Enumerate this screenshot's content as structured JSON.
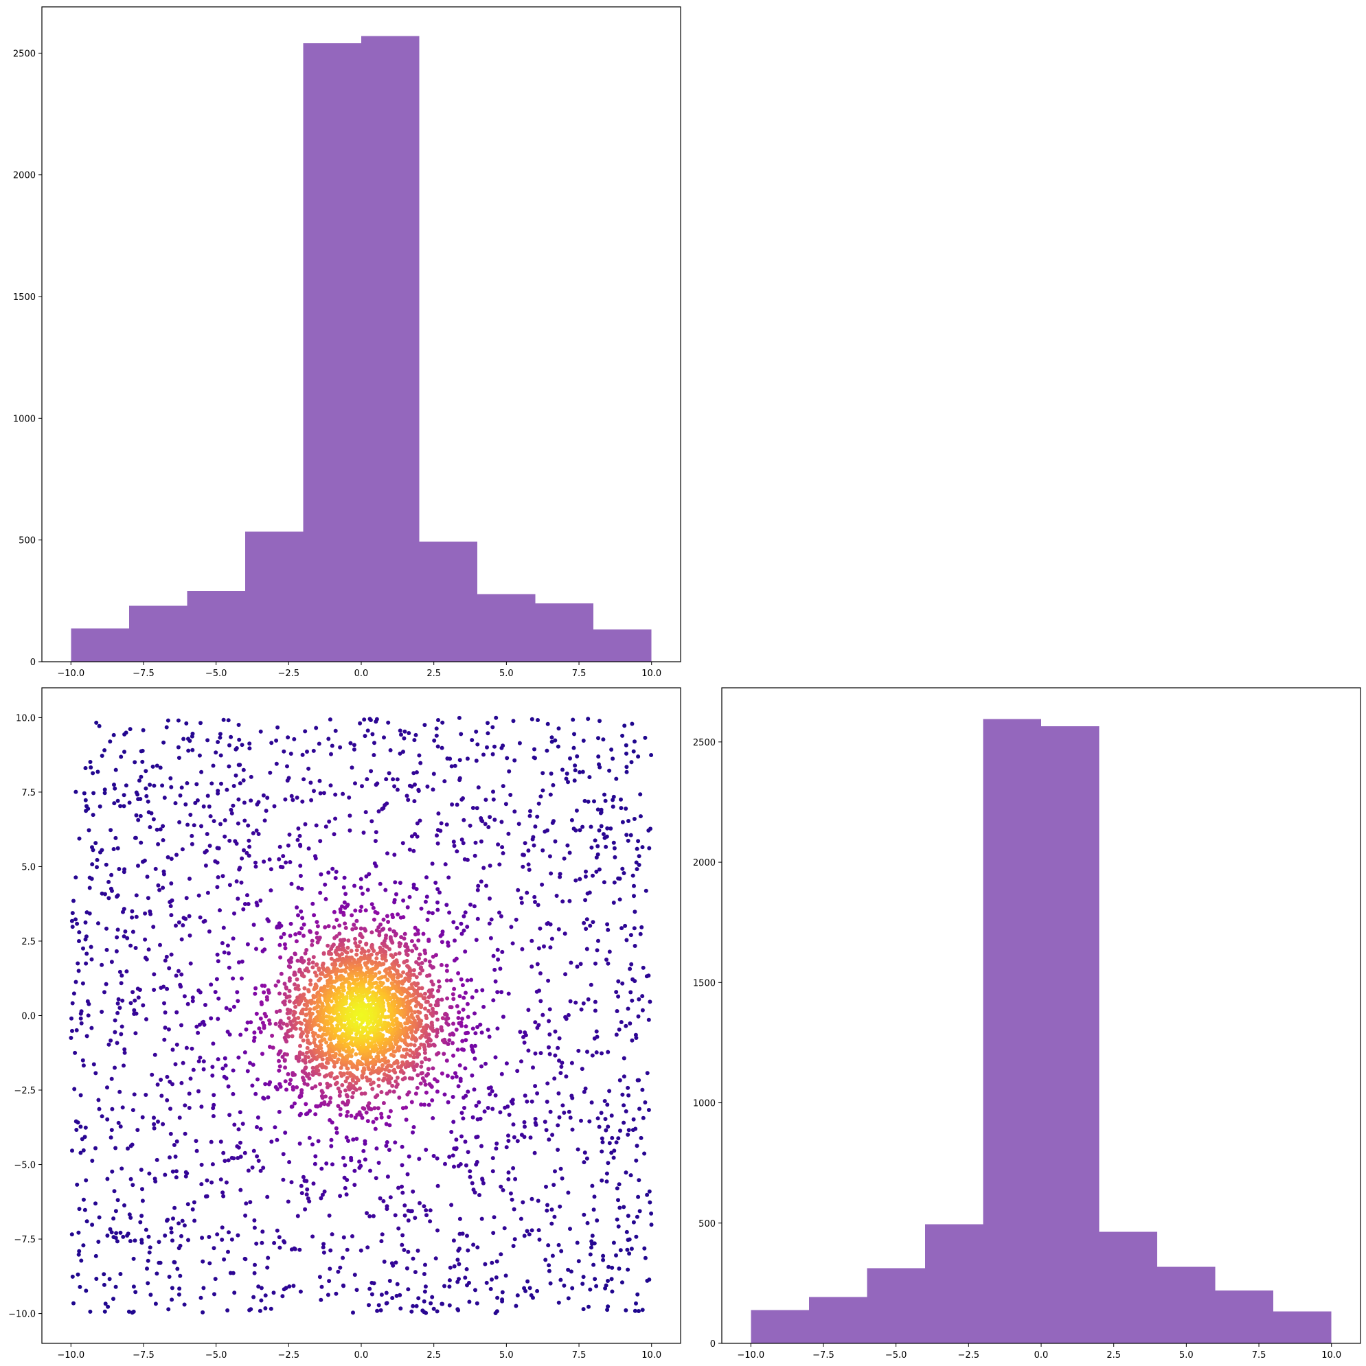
{
  "colors": {
    "hist_fill": "#9467bd",
    "scatter_colormap": [
      "#0d0887",
      "#5302a3",
      "#8b0aa5",
      "#b83289",
      "#db5c68",
      "#f48849",
      "#febd2a",
      "#f0f921"
    ]
  },
  "chart_data": [
    {
      "id": "top-histogram",
      "type": "bar",
      "title": "",
      "xlabel": "",
      "ylabel": "",
      "bin_edges": [
        -10,
        -8,
        -6,
        -4,
        -2,
        0,
        2,
        4,
        6,
        8,
        10
      ],
      "values": [
        137,
        230,
        290,
        535,
        2540,
        2570,
        493,
        278,
        240,
        133
      ],
      "xlim": [
        -11,
        11
      ],
      "ylim": [
        0,
        2690
      ],
      "xticks": [
        -10,
        -7.5,
        -5,
        -2.5,
        0,
        2.5,
        5,
        7.5,
        10
      ],
      "xtick_labels": [
        "−10.0",
        "−7.5",
        "−5.0",
        "−2.5",
        "0.0",
        "2.5",
        "5.0",
        "7.5",
        "10.0"
      ],
      "yticks": [
        0,
        500,
        1000,
        1500,
        2000,
        2500
      ],
      "ytick_labels": [
        "0",
        "500",
        "1000",
        "1500",
        "2000",
        "2500"
      ],
      "grid": false
    },
    {
      "id": "scatter",
      "type": "scatter",
      "title": "",
      "xlabel": "",
      "ylabel": "",
      "description": "points concentrated near (0,0) and spreading uniformly to ±10; colour encodes density (plasma colormap)",
      "x_range": [
        -10,
        10
      ],
      "y_range": [
        -10,
        10
      ],
      "core_sigma": 1.4,
      "xlim": [
        -11,
        11
      ],
      "ylim": [
        -11,
        11
      ],
      "xticks": [
        -10,
        -7.5,
        -5,
        -2.5,
        0,
        2.5,
        5,
        7.5,
        10
      ],
      "xtick_labels": [
        "−10.0",
        "−7.5",
        "−5.0",
        "−2.5",
        "0.0",
        "2.5",
        "5.0",
        "7.5",
        "10.0"
      ],
      "yticks": [
        10,
        7.5,
        5,
        2.5,
        0,
        -2.5,
        -5,
        -7.5,
        -10
      ],
      "ytick_labels": [
        "10.0",
        "7.5",
        "5.0",
        "2.5",
        "0.0",
        "−2.5",
        "−5.0",
        "−7.5",
        "−10.0"
      ],
      "grid": false
    },
    {
      "id": "right-histogram",
      "type": "bar",
      "title": "",
      "xlabel": "",
      "ylabel": "",
      "bin_edges": [
        -10,
        -8,
        -6,
        -4,
        -2,
        0,
        2,
        4,
        6,
        8,
        10
      ],
      "values": [
        138,
        192,
        312,
        495,
        2595,
        2565,
        463,
        318,
        220,
        132
      ],
      "xlim": [
        -11,
        11
      ],
      "ylim": [
        0,
        2725
      ],
      "xticks": [
        -10,
        -7.5,
        -5,
        -2.5,
        0,
        2.5,
        5,
        7.5,
        10
      ],
      "xtick_labels": [
        "−10.0",
        "−7.5",
        "−5.0",
        "−2.5",
        "0.0",
        "2.5",
        "5.0",
        "7.5",
        "10.0"
      ],
      "yticks": [
        0,
        500,
        1000,
        1500,
        2000,
        2500
      ],
      "ytick_labels": [
        "0",
        "500",
        "1000",
        "1500",
        "2000",
        "2500"
      ],
      "grid": false
    }
  ]
}
